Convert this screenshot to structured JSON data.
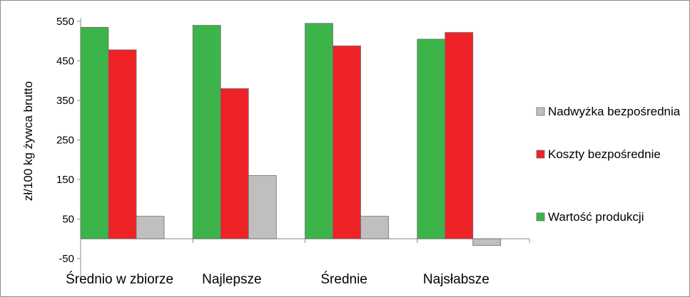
{
  "chart_data": {
    "type": "bar",
    "title": "",
    "xlabel": "",
    "ylabel": "zł/100 kg żywca brutto",
    "categories": [
      "Średnio w zbiorze",
      "Najlepsze",
      "Średnie",
      "Najsłabsze"
    ],
    "ylim": [
      -50,
      550
    ],
    "yticks": [
      550,
      450,
      350,
      250,
      150,
      50,
      -50
    ],
    "grid": false,
    "legend_position": "right",
    "series": [
      {
        "name": "Wartość produkcji",
        "color": "#3cb449",
        "values": [
          535,
          540,
          545,
          505
        ]
      },
      {
        "name": "Koszty bezpośrednie",
        "color": "#ee2227",
        "values": [
          478,
          380,
          488,
          522
        ]
      },
      {
        "name": "Nadwyżka bezpośrednia",
        "color": "#bfbfbf",
        "values": [
          57,
          160,
          57,
          -17
        ]
      }
    ],
    "legend_order": [
      2,
      1,
      0
    ]
  }
}
